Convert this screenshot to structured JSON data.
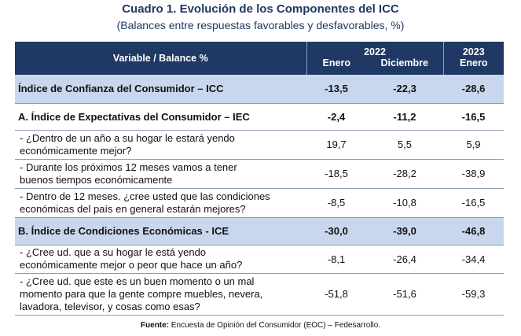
{
  "title": "Cuadro 1. Evolución de los Componentes del ICC",
  "subtitle": "(Balances entre respuestas favorables y desfavorables, %)",
  "header": {
    "variable": "Variable / Balance %",
    "year_2022": "2022",
    "year_2023": "2023",
    "col_enero_2022": "Enero",
    "col_diciembre_2022": "Diciembre",
    "col_enero_2023": "Enero"
  },
  "rows": [
    {
      "label": "Índice de Confianza del Consumidor – ICC",
      "v1": "-13,5",
      "v2": "-22,3",
      "v3": "-28,6"
    },
    {
      "label": "A. Índice de Expectativas del Consumidor – IEC",
      "v1": "-2,4",
      "v2": "-11,2",
      "v3": "-16,5"
    },
    {
      "label_l1": "- ¿Dentro de un año a su hogar le estará yendo",
      "label_l2": "económicamente mejor?",
      "v1": "19,7",
      "v2": "5,5",
      "v3": "5,9"
    },
    {
      "label_l1": "- Durante los próximos 12 meses vamos a tener",
      "label_l2": "buenos tiempos económicamente",
      "v1": "-18,5",
      "v2": "-28,2",
      "v3": "-38,9"
    },
    {
      "label_l1": "- Dentro de 12 meses. ¿cree usted que las condiciones",
      "label_l2": "económicas del país en general estarán mejores?",
      "v1": "-8,5",
      "v2": "-10,8",
      "v3": "-16,5"
    },
    {
      "label": "B. Índice de Condiciones Económicas - ICE",
      "v1": "-30,0",
      "v2": "-39,0",
      "v3": "-46,8"
    },
    {
      "label_l1": "- ¿Cree ud. que a su hogar le está yendo",
      "label_l2": "económicamente mejor o peor que hace un año?",
      "v1": "-8,1",
      "v2": "-26,4",
      "v3": "-34,4"
    },
    {
      "label_l1": "- ¿Cree ud. que este es un buen momento o un mal",
      "label_l2": "momento para que la gente compre muebles, nevera,",
      "label_l3": "lavadora, televisor, y cosas como esas?",
      "v1": "-51,8",
      "v2": "-51,6",
      "v3": "-59,3"
    }
  ],
  "source": {
    "label": "Fuente:",
    "text": " Encuesta de Opinión del Consumidor (EOC) – Fedesarrollo."
  }
}
